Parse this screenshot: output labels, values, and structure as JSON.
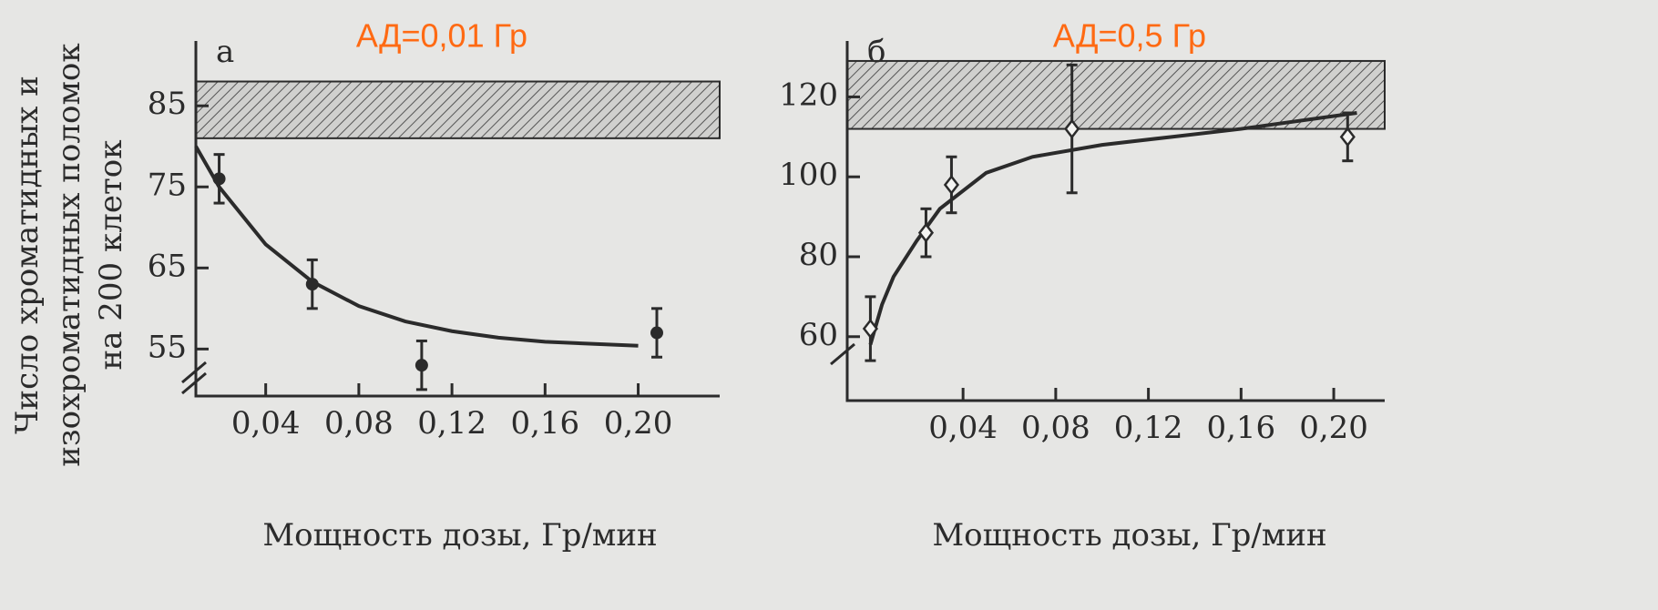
{
  "chart_data": [
    {
      "type": "scatter",
      "panel": "а",
      "annotation": "АД=0,01 Гр",
      "ylabel": [
        "Число хроматидных и",
        "изохроматидных поломок",
        "на 200 клеток"
      ],
      "xlabel": "Мощность дозы, Гр/мин",
      "x": [
        0.02,
        0.06,
        0.107,
        0.208
      ],
      "values": [
        76,
        63,
        53,
        57
      ],
      "errors": [
        3,
        3,
        3,
        3
      ],
      "band": [
        81,
        88
      ],
      "fit": {
        "x": [
          0.01,
          0.02,
          0.04,
          0.06,
          0.08,
          0.1,
          0.12,
          0.14,
          0.16,
          0.2
        ],
        "values": [
          80,
          75,
          67.9,
          63.3,
          60.3,
          58.4,
          57.2,
          56.4,
          55.9,
          55.4
        ]
      },
      "xlim": [
        0.01,
        0.235
      ],
      "ylim": [
        49.2,
        93
      ],
      "xticks": [
        {
          "value": 0.04,
          "label": "0,04"
        },
        {
          "value": 0.08,
          "label": "0,08"
        },
        {
          "value": 0.12,
          "label": "0,12"
        },
        {
          "value": 0.16,
          "label": "0,16"
        },
        {
          "value": 0.2,
          "label": "0,20"
        }
      ],
      "yticks": [
        55,
        65,
        75,
        85
      ],
      "color": "#2b2b2b"
    },
    {
      "type": "scatter",
      "panel": "б",
      "annotation": "АД=0,5 Гр",
      "xlabel": "Мощность дозы, Гр/мин",
      "x": [
        0.0,
        0.024,
        0.035,
        0.087,
        0.206
      ],
      "values": [
        62,
        86,
        98,
        112,
        110
      ],
      "errors": [
        8,
        6,
        7,
        16,
        6
      ],
      "band": [
        112,
        129
      ],
      "fit": {
        "x": [
          0,
          0.005,
          0.01,
          0.02,
          0.03,
          0.05,
          0.07,
          0.1,
          0.13,
          0.16,
          0.21
        ],
        "values": [
          58,
          68,
          75,
          84,
          92,
          101,
          105,
          108,
          110,
          112,
          116
        ]
      },
      "xlim": [
        -0.01,
        0.222
      ],
      "ylim": [
        44,
        134
      ],
      "xticks": [
        {
          "value": 0.04,
          "label": "0,04"
        },
        {
          "value": 0.08,
          "label": "0,08"
        },
        {
          "value": 0.12,
          "label": "0,12"
        },
        {
          "value": 0.16,
          "label": "0,16"
        },
        {
          "value": 0.2,
          "label": "0,20"
        }
      ],
      "yticks": [
        60,
        80,
        100,
        120
      ],
      "color": "#2b2b2b"
    }
  ]
}
